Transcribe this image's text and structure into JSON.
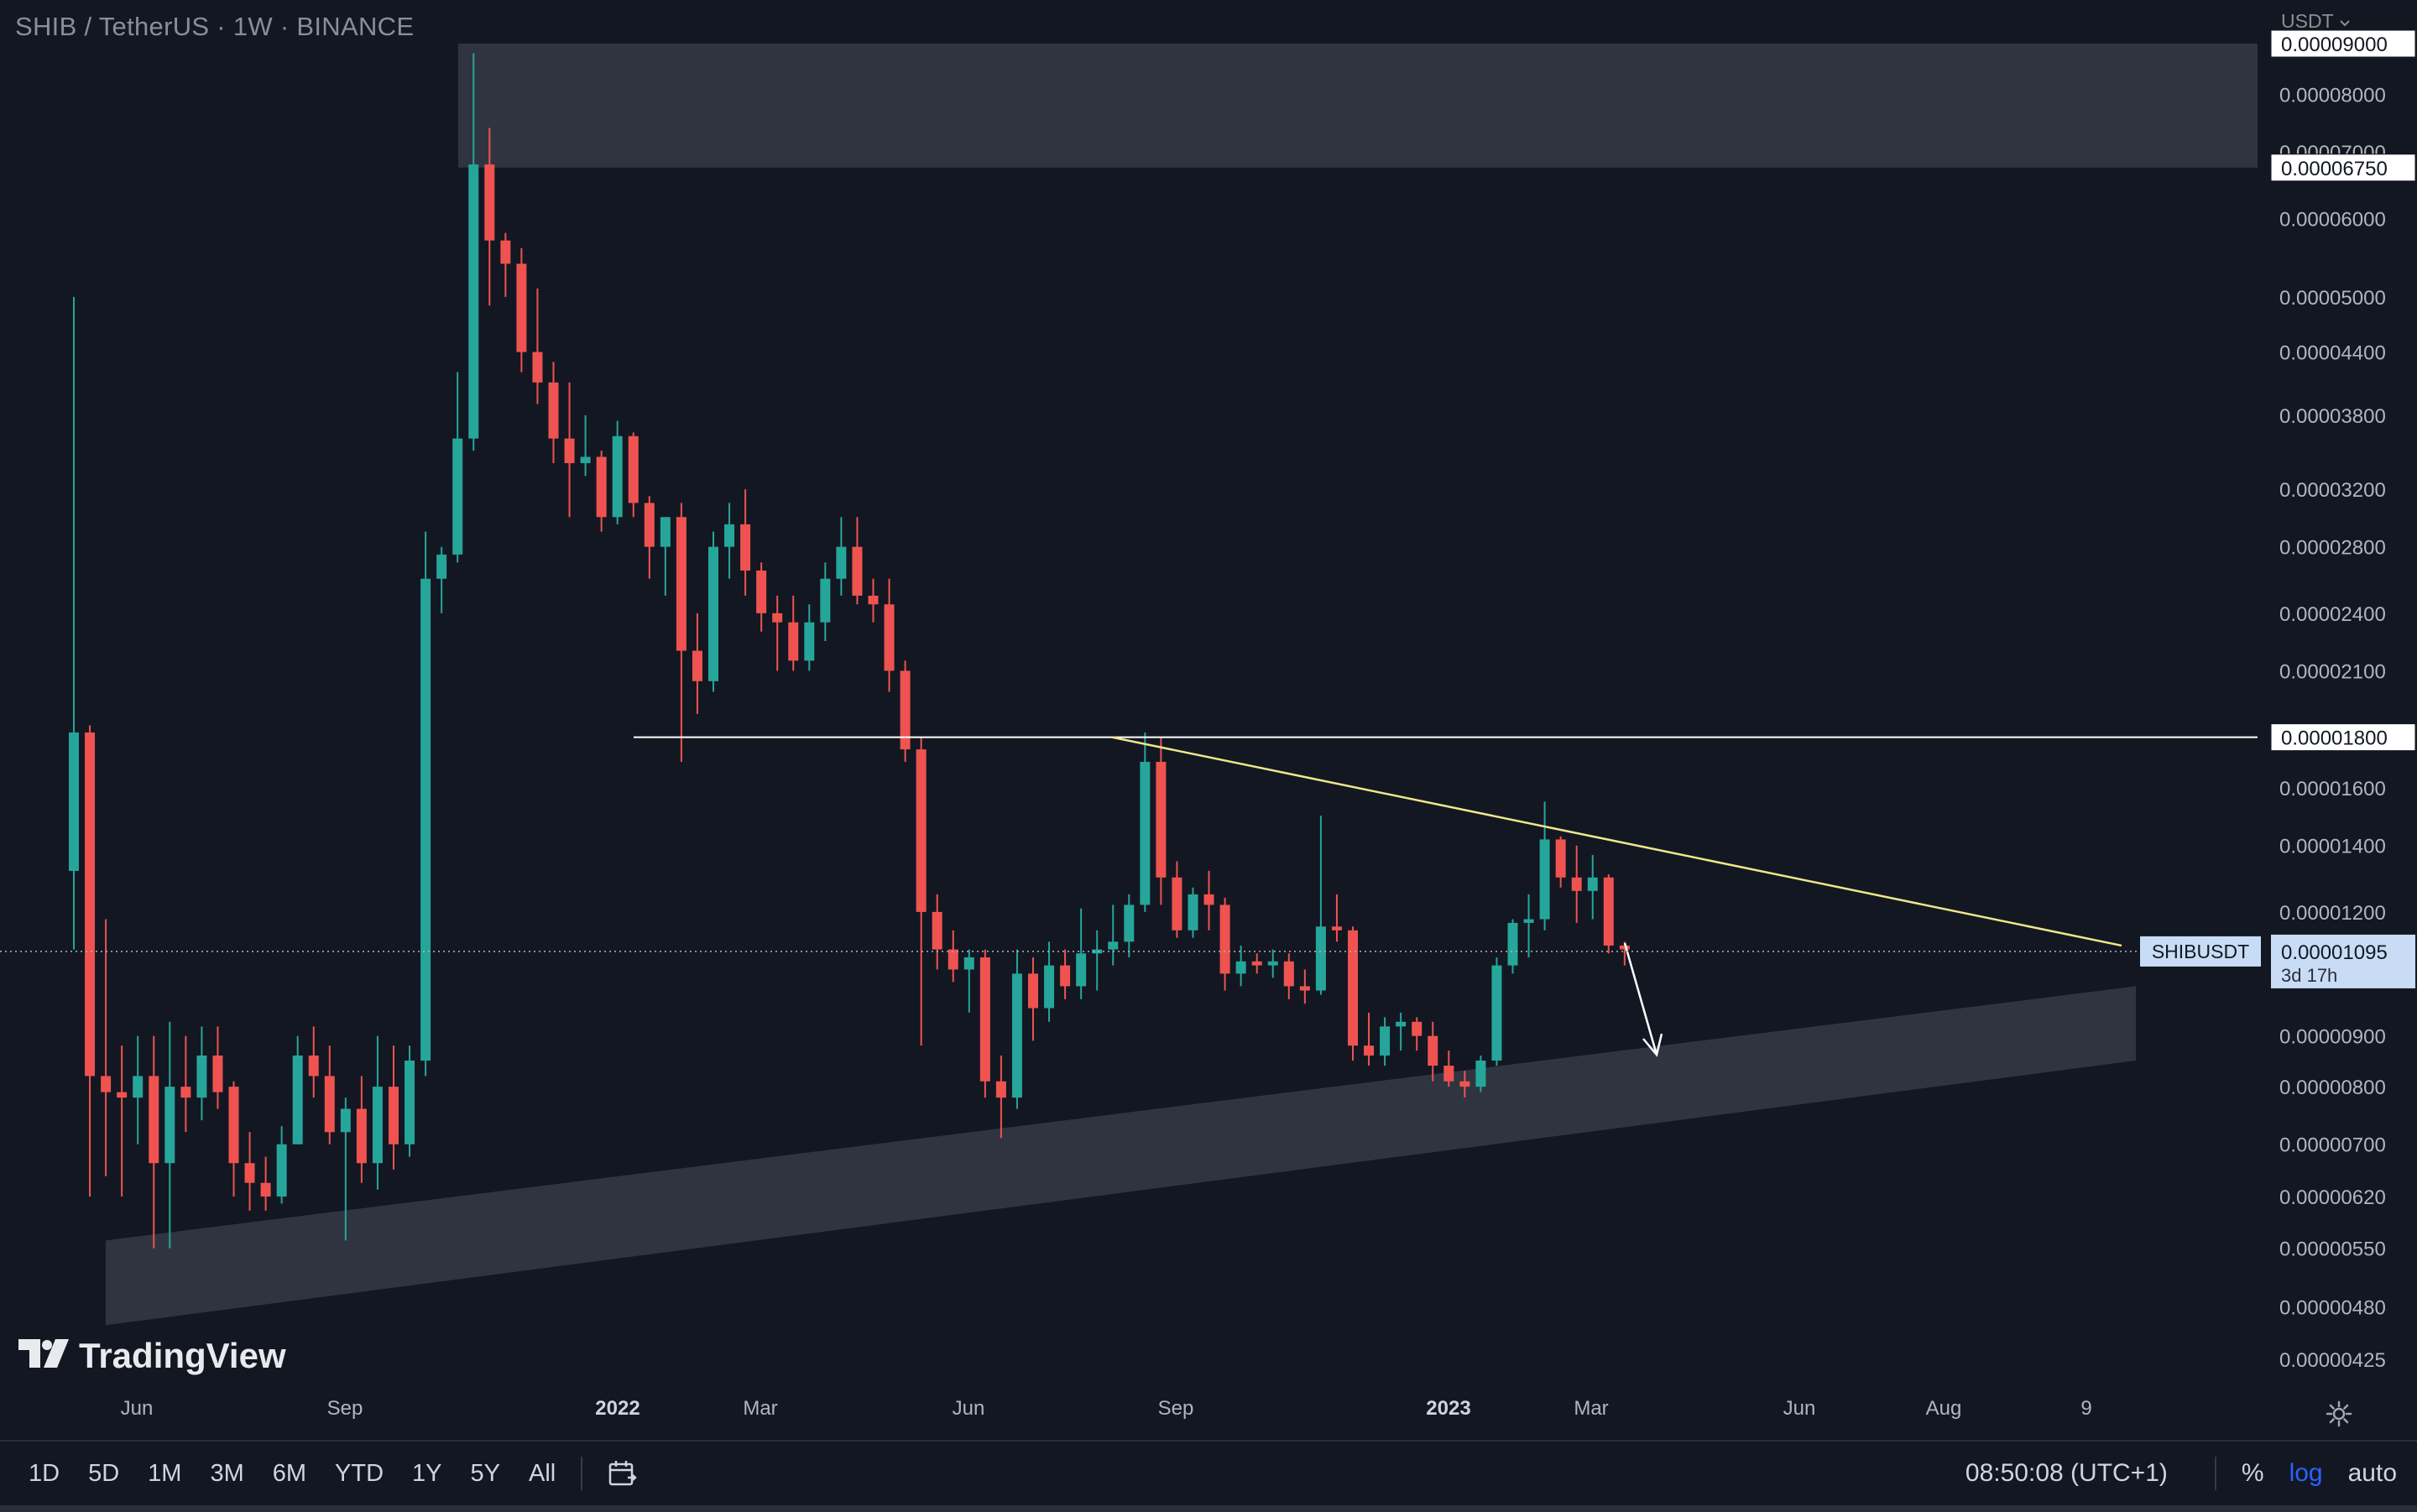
{
  "legend": {
    "symbol": "SHIB / TetherUS",
    "interval": "1W",
    "exchange": "BINANCE",
    "separator": "·"
  },
  "currency_selector": "USDT",
  "brand": "TradingView",
  "chart_data": {
    "type": "candlestick",
    "symbol": "SHIBUSDT",
    "scale": "log",
    "ylim": [
      4.25e-06,
      9e-05
    ],
    "x_ticks": [
      {
        "label": "Jun",
        "bold": false
      },
      {
        "label": "Sep",
        "bold": false
      },
      {
        "label": "2022",
        "bold": true
      },
      {
        "label": "Mar",
        "bold": false
      },
      {
        "label": "Jun",
        "bold": false
      },
      {
        "label": "Sep",
        "bold": false
      },
      {
        "label": "2023",
        "bold": true
      },
      {
        "label": "Mar",
        "bold": false
      },
      {
        "label": "Jun",
        "bold": false
      },
      {
        "label": "Aug",
        "bold": false
      },
      {
        "label": "9",
        "bold": false
      }
    ],
    "y_ticks": [
      {
        "v": 9e-05,
        "label": "0.00009000"
      },
      {
        "v": 8e-05,
        "label": "0.00008000"
      },
      {
        "v": 7e-05,
        "label": "0.00007000"
      },
      {
        "v": 6e-05,
        "label": "0.00006000"
      },
      {
        "v": 5e-05,
        "label": "0.00005000"
      },
      {
        "v": 4.4e-05,
        "label": "0.00004400"
      },
      {
        "v": 3.8e-05,
        "label": "0.00003800"
      },
      {
        "v": 3.2e-05,
        "label": "0.00003200"
      },
      {
        "v": 2.8e-05,
        "label": "0.00002800"
      },
      {
        "v": 2.4e-05,
        "label": "0.00002400"
      },
      {
        "v": 2.1e-05,
        "label": "0.00002100"
      },
      {
        "v": 1.6e-05,
        "label": "0.00001600"
      },
      {
        "v": 1.4e-05,
        "label": "0.00001400"
      },
      {
        "v": 1.2e-05,
        "label": "0.00001200"
      },
      {
        "v": 9e-06,
        "label": "0.00000900"
      },
      {
        "v": 8e-06,
        "label": "0.00000800"
      },
      {
        "v": 7e-06,
        "label": "0.00000700"
      },
      {
        "v": 6.2e-06,
        "label": "0.00000620"
      },
      {
        "v": 5.5e-06,
        "label": "0.00000550"
      },
      {
        "v": 4.8e-06,
        "label": "0.00000480"
      },
      {
        "v": 4.25e-06,
        "label": "0.00000425"
      }
    ],
    "candles": [
      {
        "o": 1.32e-05,
        "h": 5e-05,
        "l": 1.1e-05,
        "c": 1.82e-05
      },
      {
        "o": 1.82e-05,
        "h": 1.85e-05,
        "l": 6.2e-06,
        "c": 8.2e-06
      },
      {
        "o": 8.2e-06,
        "h": 1.18e-05,
        "l": 6.5e-06,
        "c": 7.9e-06
      },
      {
        "o": 7.9e-06,
        "h": 8.8e-06,
        "l": 6.2e-06,
        "c": 7.8e-06
      },
      {
        "o": 7.8e-06,
        "h": 9e-06,
        "l": 7e-06,
        "c": 8.2e-06
      },
      {
        "o": 8.2e-06,
        "h": 9e-06,
        "l": 5.5e-06,
        "c": 6.7e-06
      },
      {
        "o": 6.7e-06,
        "h": 9.3e-06,
        "l": 5.5e-06,
        "c": 8e-06
      },
      {
        "o": 8e-06,
        "h": 9e-06,
        "l": 7.2e-06,
        "c": 7.8e-06
      },
      {
        "o": 7.8e-06,
        "h": 9.2e-06,
        "l": 7.4e-06,
        "c": 8.6e-06
      },
      {
        "o": 8.6e-06,
        "h": 9.2e-06,
        "l": 7.6e-06,
        "c": 7.9e-06
      },
      {
        "o": 8e-06,
        "h": 8.1e-06,
        "l": 6.2e-06,
        "c": 6.7e-06
      },
      {
        "o": 6.7e-06,
        "h": 7.2e-06,
        "l": 6e-06,
        "c": 6.4e-06
      },
      {
        "o": 6.4e-06,
        "h": 6.8e-06,
        "l": 6e-06,
        "c": 6.2e-06
      },
      {
        "o": 6.2e-06,
        "h": 7.3e-06,
        "l": 6.1e-06,
        "c": 7e-06
      },
      {
        "o": 7e-06,
        "h": 9e-06,
        "l": 7e-06,
        "c": 8.6e-06
      },
      {
        "o": 8.6e-06,
        "h": 9.2e-06,
        "l": 7.8e-06,
        "c": 8.2e-06
      },
      {
        "o": 8.2e-06,
        "h": 8.8e-06,
        "l": 7e-06,
        "c": 7.2e-06
      },
      {
        "o": 7.2e-06,
        "h": 7.8e-06,
        "l": 5.6e-06,
        "c": 7.6e-06
      },
      {
        "o": 7.6e-06,
        "h": 8.2e-06,
        "l": 6.4e-06,
        "c": 6.7e-06
      },
      {
        "o": 6.7e-06,
        "h": 9e-06,
        "l": 6.3e-06,
        "c": 8e-06
      },
      {
        "o": 8e-06,
        "h": 8.8e-06,
        "l": 6.6e-06,
        "c": 7e-06
      },
      {
        "o": 7e-06,
        "h": 8.8e-06,
        "l": 6.8e-06,
        "c": 8.5e-06
      },
      {
        "o": 8.5e-06,
        "h": 2.9e-05,
        "l": 8.2e-06,
        "c": 2.6e-05
      },
      {
        "o": 2.6e-05,
        "h": 2.8e-05,
        "l": 2.4e-05,
        "c": 2.75e-05
      },
      {
        "o": 2.75e-05,
        "h": 4.2e-05,
        "l": 2.7e-05,
        "c": 3.6e-05
      },
      {
        "o": 3.6e-05,
        "h": 8.8e-05,
        "l": 3.5e-05,
        "c": 6.8e-05
      },
      {
        "o": 6.8e-05,
        "h": 7.4e-05,
        "l": 4.9e-05,
        "c": 5.7e-05
      },
      {
        "o": 5.7e-05,
        "h": 5.8e-05,
        "l": 5e-05,
        "c": 5.4e-05
      },
      {
        "o": 5.4e-05,
        "h": 5.6e-05,
        "l": 4.2e-05,
        "c": 4.4e-05
      },
      {
        "o": 4.4e-05,
        "h": 5.1e-05,
        "l": 3.9e-05,
        "c": 4.1e-05
      },
      {
        "o": 4.1e-05,
        "h": 4.3e-05,
        "l": 3.4e-05,
        "c": 3.6e-05
      },
      {
        "o": 3.6e-05,
        "h": 4.1e-05,
        "l": 3e-05,
        "c": 3.4e-05
      },
      {
        "o": 3.4e-05,
        "h": 3.8e-05,
        "l": 3.3e-05,
        "c": 3.45e-05
      },
      {
        "o": 3.45e-05,
        "h": 3.5e-05,
        "l": 2.9e-05,
        "c": 3e-05
      },
      {
        "o": 3e-05,
        "h": 3.75e-05,
        "l": 2.95e-05,
        "c": 3.62e-05
      },
      {
        "o": 3.62e-05,
        "h": 3.65e-05,
        "l": 3e-05,
        "c": 3.1e-05
      },
      {
        "o": 3.1e-05,
        "h": 3.15e-05,
        "l": 2.6e-05,
        "c": 2.8e-05
      },
      {
        "o": 2.8e-05,
        "h": 3e-05,
        "l": 2.5e-05,
        "c": 3e-05
      },
      {
        "o": 3e-05,
        "h": 3.1e-05,
        "l": 1.7e-05,
        "c": 2.2e-05
      },
      {
        "o": 2.2e-05,
        "h": 2.4e-05,
        "l": 1.9e-05,
        "c": 2.05e-05
      },
      {
        "o": 2.05e-05,
        "h": 2.9e-05,
        "l": 2e-05,
        "c": 2.8e-05
      },
      {
        "o": 2.8e-05,
        "h": 3.1e-05,
        "l": 2.6e-05,
        "c": 2.95e-05
      },
      {
        "o": 2.95e-05,
        "h": 3.2e-05,
        "l": 2.5e-05,
        "c": 2.65e-05
      },
      {
        "o": 2.65e-05,
        "h": 2.7e-05,
        "l": 2.3e-05,
        "c": 2.4e-05
      },
      {
        "o": 2.4e-05,
        "h": 2.5e-05,
        "l": 2.1e-05,
        "c": 2.35e-05
      },
      {
        "o": 2.35e-05,
        "h": 2.5e-05,
        "l": 2.1e-05,
        "c": 2.15e-05
      },
      {
        "o": 2.15e-05,
        "h": 2.45e-05,
        "l": 2.1e-05,
        "c": 2.35e-05
      },
      {
        "o": 2.35e-05,
        "h": 2.7e-05,
        "l": 2.25e-05,
        "c": 2.6e-05
      },
      {
        "o": 2.6e-05,
        "h": 3e-05,
        "l": 2.5e-05,
        "c": 2.8e-05
      },
      {
        "o": 2.8e-05,
        "h": 3e-05,
        "l": 2.45e-05,
        "c": 2.5e-05
      },
      {
        "o": 2.5e-05,
        "h": 2.6e-05,
        "l": 2.35e-05,
        "c": 2.45e-05
      },
      {
        "o": 2.45e-05,
        "h": 2.6e-05,
        "l": 2e-05,
        "c": 2.1e-05
      },
      {
        "o": 2.1e-05,
        "h": 2.15e-05,
        "l": 1.7e-05,
        "c": 1.75e-05
      },
      {
        "o": 1.75e-05,
        "h": 1.8e-05,
        "l": 8.8e-06,
        "c": 1.2e-05
      },
      {
        "o": 1.2e-05,
        "h": 1.25e-05,
        "l": 1.05e-05,
        "c": 1.1e-05
      },
      {
        "o": 1.1e-05,
        "h": 1.15e-05,
        "l": 1.02e-05,
        "c": 1.05e-05
      },
      {
        "o": 1.05e-05,
        "h": 1.1e-05,
        "l": 9.5e-06,
        "c": 1.08e-05
      },
      {
        "o": 1.08e-05,
        "h": 1.1e-05,
        "l": 7.8e-06,
        "c": 8.1e-06
      },
      {
        "o": 8.1e-06,
        "h": 8.6e-06,
        "l": 7.1e-06,
        "c": 7.8e-06
      },
      {
        "o": 7.8e-06,
        "h": 1.1e-05,
        "l": 7.6e-06,
        "c": 1.04e-05
      },
      {
        "o": 1.04e-05,
        "h": 1.08e-05,
        "l": 8.9e-06,
        "c": 9.6e-06
      },
      {
        "o": 9.6e-06,
        "h": 1.12e-05,
        "l": 9.3e-06,
        "c": 1.06e-05
      },
      {
        "o": 1.06e-05,
        "h": 1.1e-05,
        "l": 9.8e-06,
        "c": 1.01e-05
      },
      {
        "o": 1.01e-05,
        "h": 1.21e-05,
        "l": 9.8e-06,
        "c": 1.09e-05
      },
      {
        "o": 1.09e-05,
        "h": 1.15e-05,
        "l": 1e-05,
        "c": 1.1e-05
      },
      {
        "o": 1.1e-05,
        "h": 1.22e-05,
        "l": 1.06e-05,
        "c": 1.12e-05
      },
      {
        "o": 1.12e-05,
        "h": 1.25e-05,
        "l": 1.08e-05,
        "c": 1.22e-05
      },
      {
        "o": 1.22e-05,
        "h": 1.82e-05,
        "l": 1.2e-05,
        "c": 1.7e-05
      },
      {
        "o": 1.7e-05,
        "h": 1.8e-05,
        "l": 1.22e-05,
        "c": 1.3e-05
      },
      {
        "o": 1.3e-05,
        "h": 1.35e-05,
        "l": 1.13e-05,
        "c": 1.15e-05
      },
      {
        "o": 1.15e-05,
        "h": 1.27e-05,
        "l": 1.13e-05,
        "c": 1.25e-05
      },
      {
        "o": 1.25e-05,
        "h": 1.32e-05,
        "l": 1.15e-05,
        "c": 1.22e-05
      },
      {
        "o": 1.22e-05,
        "h": 1.24e-05,
        "l": 1e-05,
        "c": 1.04e-05
      },
      {
        "o": 1.04e-05,
        "h": 1.11e-05,
        "l": 1.01e-05,
        "c": 1.07e-05
      },
      {
        "o": 1.07e-05,
        "h": 1.09e-05,
        "l": 1.04e-05,
        "c": 1.06e-05
      },
      {
        "o": 1.06e-05,
        "h": 1.1e-05,
        "l": 1.03e-05,
        "c": 1.07e-05
      },
      {
        "o": 1.07e-05,
        "h": 1.09e-05,
        "l": 9.8e-06,
        "c": 1.01e-05
      },
      {
        "o": 1.01e-05,
        "h": 1.05e-05,
        "l": 9.7e-06,
        "c": 1e-05
      },
      {
        "o": 1e-05,
        "h": 1.5e-05,
        "l": 9.9e-06,
        "c": 1.16e-05
      },
      {
        "o": 1.16e-05,
        "h": 1.25e-05,
        "l": 1.12e-05,
        "c": 1.15e-05
      },
      {
        "o": 1.15e-05,
        "h": 1.16e-05,
        "l": 8.5e-06,
        "c": 8.8e-06
      },
      {
        "o": 8.8e-06,
        "h": 9.5e-06,
        "l": 8.4e-06,
        "c": 8.6e-06
      },
      {
        "o": 8.6e-06,
        "h": 9.4e-06,
        "l": 8.4e-06,
        "c": 9.2e-06
      },
      {
        "o": 9.2e-06,
        "h": 9.5e-06,
        "l": 8.7e-06,
        "c": 9.3e-06
      },
      {
        "o": 9.3e-06,
        "h": 9.4e-06,
        "l": 8.7e-06,
        "c": 9e-06
      },
      {
        "o": 9e-06,
        "h": 9.3e-06,
        "l": 8.1e-06,
        "c": 8.4e-06
      },
      {
        "o": 8.4e-06,
        "h": 8.7e-06,
        "l": 8e-06,
        "c": 8.1e-06
      },
      {
        "o": 8.1e-06,
        "h": 8.3e-06,
        "l": 7.8e-06,
        "c": 8e-06
      },
      {
        "o": 8e-06,
        "h": 8.6e-06,
        "l": 7.9e-06,
        "c": 8.5e-06
      },
      {
        "o": 8.5e-06,
        "h": 1.08e-05,
        "l": 8.4e-06,
        "c": 1.06e-05
      },
      {
        "o": 1.06e-05,
        "h": 1.18e-05,
        "l": 1.04e-05,
        "c": 1.17e-05
      },
      {
        "o": 1.17e-05,
        "h": 1.25e-05,
        "l": 1.08e-05,
        "c": 1.18e-05
      },
      {
        "o": 1.18e-05,
        "h": 1.55e-05,
        "l": 1.15e-05,
        "c": 1.42e-05
      },
      {
        "o": 1.42e-05,
        "h": 1.43e-05,
        "l": 1.27e-05,
        "c": 1.3e-05
      },
      {
        "o": 1.3e-05,
        "h": 1.4e-05,
        "l": 1.17e-05,
        "c": 1.26e-05
      },
      {
        "o": 1.26e-05,
        "h": 1.37e-05,
        "l": 1.18e-05,
        "c": 1.3e-05
      },
      {
        "o": 1.3e-05,
        "h": 1.31e-05,
        "l": 1.09e-05,
        "c": 1.11e-05
      },
      {
        "o": 1.11e-05,
        "h": 1.12e-05,
        "l": 1.06e-05,
        "c": 1.1e-05
      }
    ],
    "horizontal_lines": [
      {
        "value": 1.8e-05,
        "label": "0.00001800"
      }
    ],
    "resistance_zone": {
      "from": 6.75e-05,
      "to": 9e-05,
      "label": "0.00006750"
    },
    "trendline": {
      "from": 1.8e-05,
      "to": 1.11e-05
    },
    "support_channel": {
      "start_low": 4.6e-06,
      "start_high": 5.6e-06,
      "end_low": 8.5e-06,
      "end_high": 1.01e-05
    },
    "last_price": {
      "value": 1.095e-05,
      "label": "0.00001095",
      "countdown": "3d 17h",
      "tag": "SHIBUSDT"
    },
    "colors": {
      "up": "#26a69a",
      "down": "#ef5350",
      "background": "#131722",
      "zone": "#363a45",
      "trendline": "#f0e68c",
      "hline": "#ffffff",
      "label_bg": "#c8dcf5"
    }
  },
  "bottom_bar": {
    "timeframes": [
      "1D",
      "5D",
      "1M",
      "3M",
      "6M",
      "YTD",
      "1Y",
      "5Y",
      "All"
    ],
    "clock": "08:50:08 (UTC+1)",
    "percent": "%",
    "log": "log",
    "auto": "auto"
  }
}
